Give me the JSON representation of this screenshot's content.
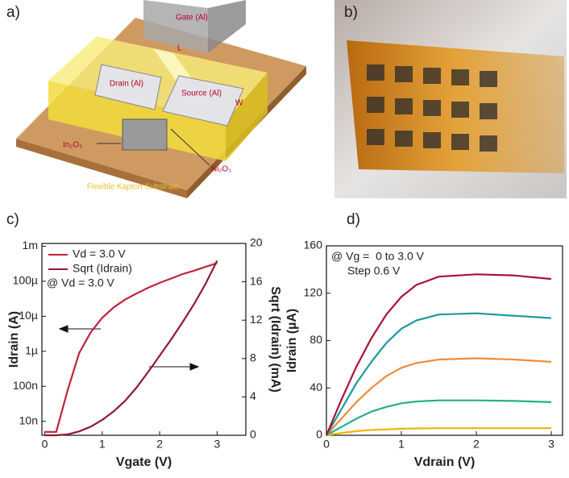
{
  "panel_labels": [
    "a)",
    "b)",
    "c)",
    "d)"
  ],
  "schematic": {
    "gate": "Gate (Al)",
    "drain": "Drain (Al)",
    "source": "Source (Al)",
    "length": "L",
    "width": "W",
    "semiconductor_left": "In₂O₃",
    "semiconductor_right": "Ni₂O₃",
    "substrate": "Flexible Kapton Substrate"
  },
  "chart_data": [
    {
      "type": "line",
      "log_y": true,
      "x": [
        0,
        0.2,
        0.4,
        0.6,
        0.8,
        1.0,
        1.2,
        1.4,
        1.6,
        1.8,
        2.0,
        2.2,
        2.4,
        2.6,
        2.8,
        3.0
      ],
      "series": [
        {
          "name": "Vd = 3.0 V",
          "color": "#c4213e",
          "values": [
            5e-09,
            5e-09,
            8e-08,
            9e-07,
            3.5e-06,
            9e-06,
            1.8e-05,
            3e-05,
            4.5e-05,
            6.5e-05,
            9e-05,
            0.00012,
            0.00016,
            0.0002,
            0.00026,
            0.00033
          ]
        },
        {
          "name": "Sqrt (Idrain)",
          "color": "#8e1b2f",
          "axis": "y2",
          "values": [
            0,
            0,
            0.1,
            0.4,
            0.9,
            1.6,
            2.5,
            3.6,
            5,
            6.6,
            8.3,
            10,
            11.8,
            13.7,
            15.8,
            18.2
          ]
        }
      ],
      "annotations": [
        "@ Vd = 3.0 V"
      ],
      "xlabel": "Vgate (V)",
      "ylabel": "Idrain (A)",
      "y2label": "Sqrt (Idrain) (mA)",
      "xlim": [
        -0.05,
        3.5
      ],
      "xticks": [
        0,
        1,
        2,
        3
      ],
      "ylim": [
        4e-09,
        0.0012
      ],
      "yticks": [
        {
          "value": 1e-08,
          "label": "10n"
        },
        {
          "value": 1e-07,
          "label": "100n"
        },
        {
          "value": 1e-06,
          "label": "1µ"
        },
        {
          "value": 1e-05,
          "label": "10µ"
        },
        {
          "value": 0.0001,
          "label": "100µ"
        },
        {
          "value": 0.001,
          "label": "1m"
        }
      ],
      "y2lim": [
        0,
        20
      ],
      "y2ticks": [
        0,
        4,
        8,
        12,
        16,
        20
      ],
      "legend": "upper left"
    },
    {
      "type": "line",
      "x": [
        0,
        0.2,
        0.4,
        0.6,
        0.8,
        1.0,
        1.2,
        1.5,
        2.0,
        2.5,
        3.0
      ],
      "series": [
        {
          "color": "#f2b400",
          "values": [
            0,
            2,
            3.5,
            4.5,
            5,
            5.5,
            5.8,
            6,
            6,
            6,
            6
          ]
        },
        {
          "color": "#22b08a",
          "values": [
            0,
            7,
            14,
            20,
            24,
            27,
            28.5,
            29.5,
            29.5,
            29,
            28
          ]
        },
        {
          "color": "#ee8c3a",
          "values": [
            0,
            14,
            28,
            40,
            50,
            57,
            61,
            64,
            65,
            64,
            62
          ]
        },
        {
          "color": "#1c9a9c",
          "values": [
            0,
            22,
            44,
            62,
            78,
            90,
            97,
            102,
            103,
            101,
            99
          ]
        },
        {
          "color": "#a8123a",
          "values": [
            0,
            30,
            58,
            82,
            102,
            117,
            127,
            134,
            136,
            135,
            132
          ]
        }
      ],
      "annotations": [
        "@ Vg =  0 to 3.0 V",
        "Step 0.6 V"
      ],
      "xlabel": "Vdrain (V)",
      "ylabel": "Idrain (µA)",
      "xlim": [
        0,
        3.15
      ],
      "xticks": [
        0,
        1,
        2,
        3
      ],
      "ylim": [
        0,
        160
      ],
      "yticks": [
        0,
        40,
        80,
        120,
        160
      ]
    }
  ]
}
